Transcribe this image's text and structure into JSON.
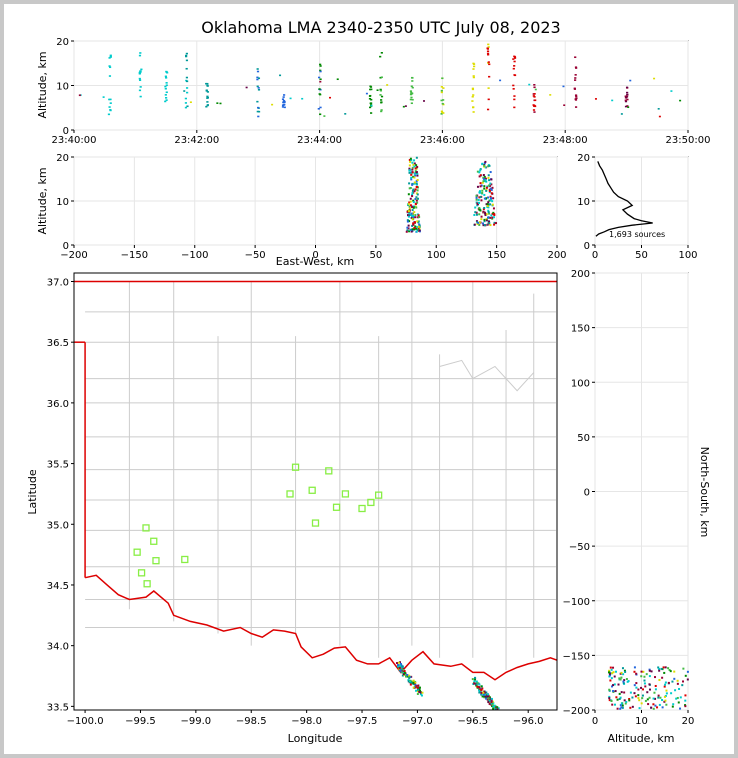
{
  "chart_data": [
    {
      "type": "scatter",
      "panel": "time-altitude",
      "title": "Oklahoma LMA 2340-2350 UTC July 08, 2023",
      "ylabel": "Altitude, km",
      "xlabel": "",
      "xlim": [
        "23:40:00",
        "23:50:00"
      ],
      "xticks": [
        "23:40:00",
        "23:42:00",
        "23:44:00",
        "23:46:00",
        "23:48:00",
        "23:50:00"
      ],
      "ylim": [
        0,
        20
      ],
      "yticks": [
        "0",
        "10",
        "20"
      ],
      "grid": true,
      "clusters": [
        {
          "t": "23:40:35",
          "z": [
            3,
            17.5
          ]
        },
        {
          "t": "23:41:05",
          "z": [
            6,
            18
          ]
        },
        {
          "t": "23:41:30",
          "z": [
            6,
            15
          ]
        },
        {
          "t": "23:41:50",
          "z": [
            5,
            18
          ]
        },
        {
          "t": "23:42:10",
          "z": [
            3,
            11
          ]
        },
        {
          "t": "23:43:00",
          "z": [
            3,
            15
          ]
        },
        {
          "t": "23:43:25",
          "z": [
            5,
            8
          ]
        },
        {
          "t": "23:44:00",
          "z": [
            3,
            18
          ]
        },
        {
          "t": "23:44:50",
          "z": [
            3,
            10
          ]
        },
        {
          "t": "23:45:00",
          "z": [
            4,
            17.5
          ]
        },
        {
          "t": "23:45:30",
          "z": [
            5,
            12
          ]
        },
        {
          "t": "23:46:00",
          "z": [
            3,
            12
          ]
        },
        {
          "t": "23:46:30",
          "z": [
            4,
            16
          ]
        },
        {
          "t": "23:46:45",
          "z": [
            3,
            19.5
          ]
        },
        {
          "t": "23:47:10",
          "z": [
            5,
            17
          ]
        },
        {
          "t": "23:47:30",
          "z": [
            4,
            11
          ]
        },
        {
          "t": "23:48:10",
          "z": [
            5,
            18
          ]
        },
        {
          "t": "23:49:00",
          "z": [
            5,
            10
          ]
        }
      ]
    },
    {
      "type": "scatter",
      "panel": "east-west-altitude",
      "xlabel": "East-West, km",
      "ylabel": "Altitude, km",
      "xlim": [
        -200,
        200
      ],
      "ylim": [
        0,
        20
      ],
      "xticks": [
        "−200",
        "−150",
        "−100",
        "−50",
        "0",
        "50",
        "100",
        "150",
        "200"
      ],
      "yticks": [
        "0",
        "10",
        "20"
      ],
      "grid": true,
      "clusters": [
        {
          "x": [
            75,
            87
          ],
          "z": [
            3,
            20
          ]
        },
        {
          "x": [
            130,
            150
          ],
          "z": [
            4.5,
            19
          ]
        }
      ]
    },
    {
      "type": "line",
      "panel": "altitude-histogram",
      "xlim": [
        0,
        100
      ],
      "ylim": [
        0,
        20
      ],
      "xticks": [
        "0",
        "50",
        "100"
      ],
      "yticks": [
        "0",
        "10",
        "20"
      ],
      "annotation": "1,693 sources",
      "profile": {
        "z": [
          19,
          18,
          17,
          16,
          15,
          14,
          13,
          12,
          11,
          10,
          9,
          8,
          7,
          6,
          5.5,
          5,
          4.5,
          4,
          3.5,
          3,
          2.5,
          2
        ],
        "count": [
          3,
          5,
          8,
          10,
          12,
          14,
          17,
          20,
          25,
          35,
          40,
          30,
          35,
          42,
          50,
          62,
          40,
          25,
          15,
          10,
          4,
          1
        ]
      }
    },
    {
      "type": "scatter",
      "panel": "plan-view",
      "xlabel": "Longitude",
      "ylabel": "Latitude",
      "xlim": [
        -100.1,
        -95.74
      ],
      "ylim": [
        33.47,
        37.07
      ],
      "xticks": [
        "−100.0",
        "−99.5",
        "−99.0",
        "−98.5",
        "−98.0",
        "−97.5",
        "−97.0",
        "−96.5",
        "−96.0"
      ],
      "yticks": [
        "33.5",
        "34.0",
        "34.5",
        "35.0",
        "35.5",
        "36.0",
        "36.5",
        "37.0"
      ],
      "colors": {
        "state_border": "#dd0000",
        "county_lines": "#cccccc",
        "stations": "#88ee44"
      },
      "stations": [
        [
          -98.1,
          35.47
        ],
        [
          -97.8,
          35.44
        ],
        [
          -97.95,
          35.28
        ],
        [
          -98.15,
          35.25
        ],
        [
          -97.65,
          35.25
        ],
        [
          -97.35,
          35.24
        ],
        [
          -97.42,
          35.18
        ],
        [
          -97.73,
          35.14
        ],
        [
          -97.5,
          35.13
        ],
        [
          -97.92,
          35.01
        ],
        [
          -99.45,
          34.97
        ],
        [
          -99.38,
          34.86
        ],
        [
          -99.53,
          34.77
        ],
        [
          -99.1,
          34.71
        ],
        [
          -99.36,
          34.7
        ],
        [
          -99.49,
          34.6
        ],
        [
          -99.44,
          34.51
        ]
      ],
      "source_clusters": [
        {
          "lon": [
            -97.18,
            -96.96
          ],
          "lat": [
            33.6,
            33.85
          ]
        },
        {
          "lon": [
            -96.5,
            -96.28
          ],
          "lat": [
            33.47,
            33.72
          ]
        }
      ]
    },
    {
      "type": "scatter",
      "panel": "altitude-north-south",
      "xlabel": "Altitude, km",
      "ylabel": "North-South, km",
      "xlim": [
        0,
        20
      ],
      "ylim": [
        -200,
        200
      ],
      "xticks": [
        "0",
        "10",
        "20"
      ],
      "yticks": [
        "−200",
        "−150",
        "−100",
        "−50",
        "0",
        "50",
        "100",
        "150",
        "200"
      ],
      "grid": true,
      "clusters": [
        {
          "z": [
            3,
            20
          ],
          "y": [
            -200,
            -160
          ]
        }
      ]
    }
  ]
}
